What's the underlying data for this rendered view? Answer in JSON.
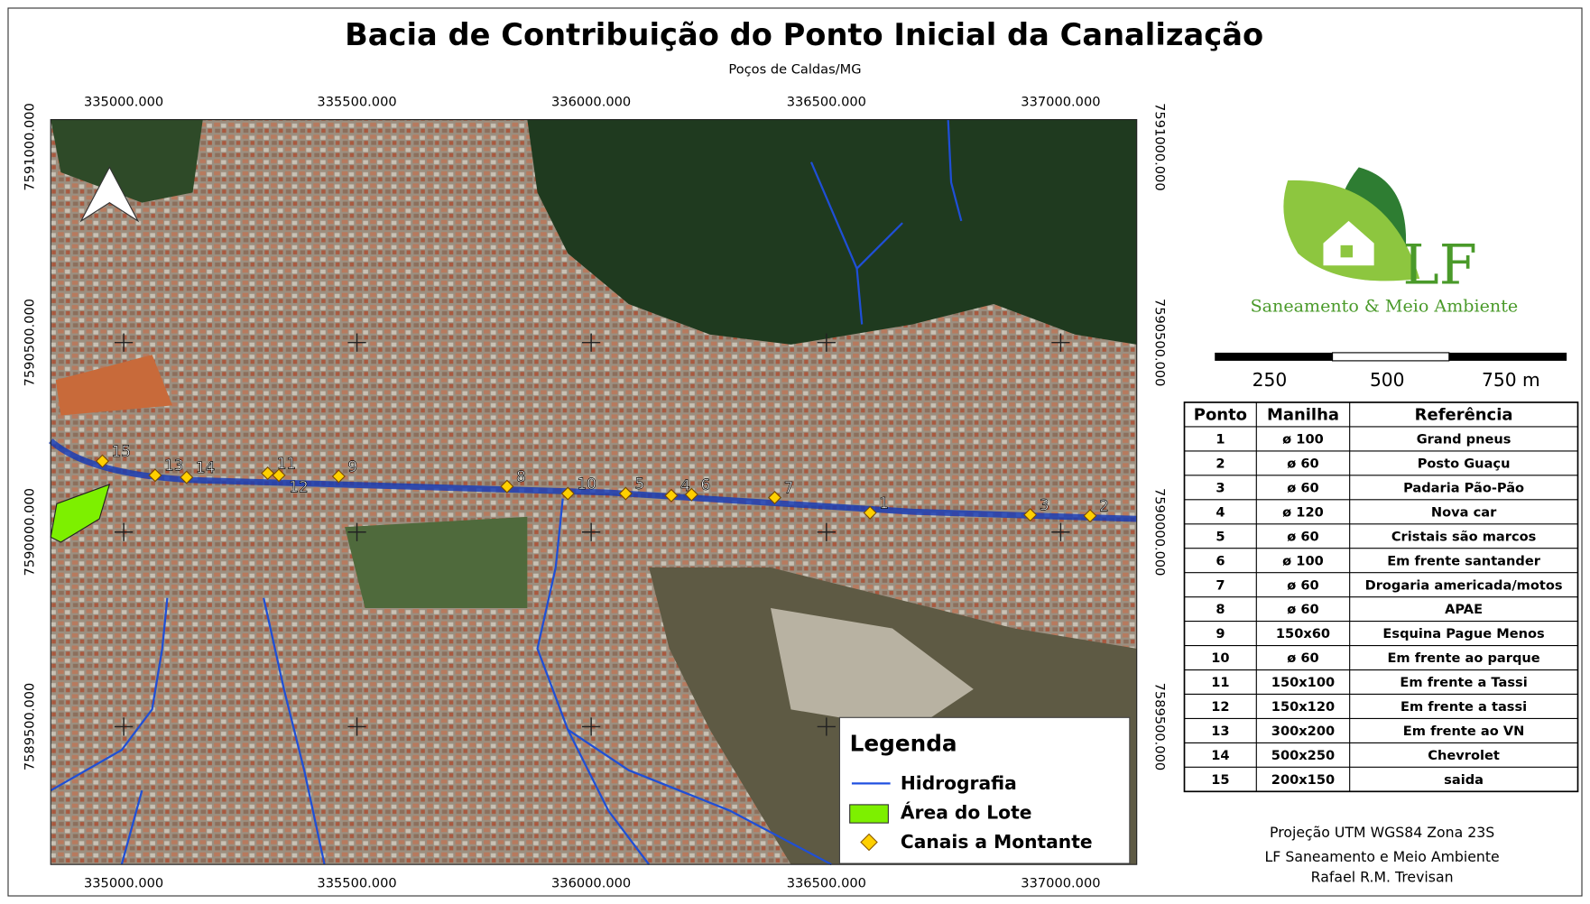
{
  "title": "Bacia de Contribuição do Ponto Inicial da Canalização",
  "subtitle": "Poços de Caldas/MG",
  "x_labels": [
    "335000.000",
    "335500.000",
    "336000.000",
    "336500.000",
    "337000.000"
  ],
  "y_labels": [
    "7591000.000",
    "7590500.000",
    "7590000.000",
    "7589500.000"
  ],
  "points": [
    "1",
    "2",
    "3",
    "4",
    "5",
    "6",
    "7",
    "8",
    "9",
    "10",
    "11",
    "12",
    "13",
    "14",
    "15"
  ],
  "legend": {
    "title": "Legenda",
    "items": [
      "Hidrografia",
      "Área do Lote",
      "Canais a Montante"
    ]
  },
  "logo": {
    "mark": "LF",
    "name": "Saneamento & Meio Ambiente"
  },
  "scale_labels": [
    "250",
    "500",
    "750 m"
  ],
  "table": {
    "header": [
      "Ponto",
      "Manilha",
      "Referência"
    ],
    "rows": [
      [
        "1",
        "ø 100",
        "Grand pneus"
      ],
      [
        "2",
        "ø 60",
        "Posto Guaçu"
      ],
      [
        "3",
        "ø 60",
        "Padaria Pão-Pão"
      ],
      [
        "4",
        "ø 120",
        "Nova car"
      ],
      [
        "5",
        "ø 60",
        "Cristais são marcos"
      ],
      [
        "6",
        "ø 100",
        "Em frente santander"
      ],
      [
        "7",
        "ø 60",
        "Drogaria americada/motos"
      ],
      [
        "8",
        "ø 60",
        "APAE"
      ],
      [
        "9",
        "150x60",
        "Esquina Pague Menos"
      ],
      [
        "10",
        "ø 60",
        "Em frente ao parque"
      ],
      [
        "11",
        "150x100",
        "Em frente a Tassi"
      ],
      [
        "12",
        "150x120",
        "Em frente a tassi"
      ],
      [
        "13",
        "300x200",
        "Em frente ao VN"
      ],
      [
        "14",
        "500x250",
        "Chevrolet"
      ],
      [
        "15",
        "200x150",
        "saida"
      ]
    ]
  },
  "footer": [
    "Projeção UTM WGS84 Zona 23S",
    "LF Saneamento e Meio Ambiente",
    "Rafael R.M. Trevisan"
  ]
}
